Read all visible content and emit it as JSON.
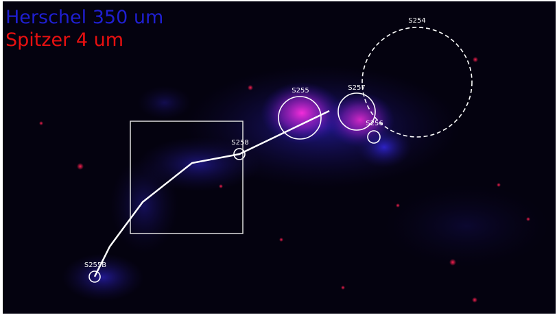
{
  "legend": {
    "herschel": "Herschel 350 um",
    "spitzer": "Spitzer 4 um"
  },
  "regions": [
    {
      "label": "S254"
    },
    {
      "label": "S255"
    },
    {
      "label": "S257"
    },
    {
      "label": "S256"
    },
    {
      "label": "S258"
    },
    {
      "label": "S255B"
    }
  ]
}
